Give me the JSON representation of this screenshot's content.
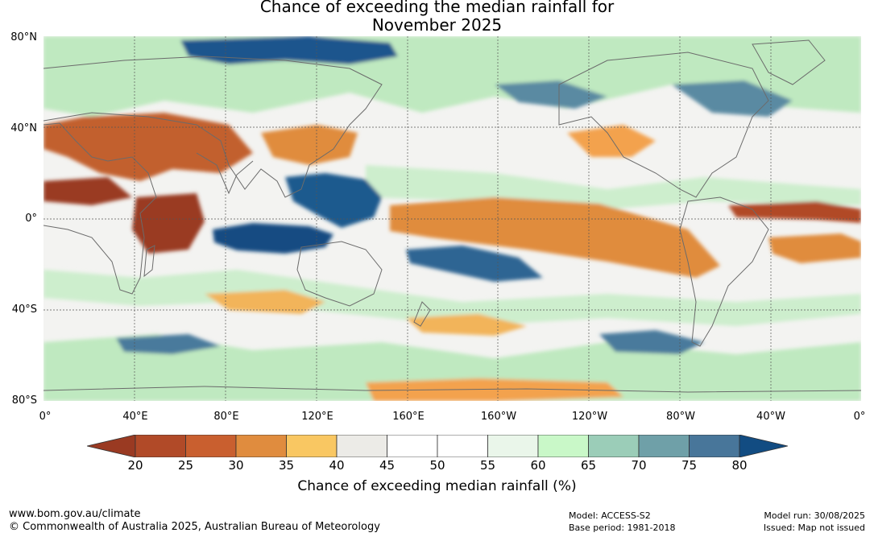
{
  "title": {
    "line1": "Chance of exceeding the median rainfall for",
    "line2": "November 2025"
  },
  "map": {
    "projection": "equirectangular, global",
    "lat_labels": [
      "80°N",
      "40°N",
      "0°",
      "40°S",
      "80°S"
    ],
    "lon_labels": [
      "0°",
      "40°E",
      "80°E",
      "120°E",
      "160°E",
      "160°W",
      "120°W",
      "80°W",
      "40°W",
      "0°"
    ],
    "gridlines": true
  },
  "colorbar": {
    "ticks": [
      "20",
      "25",
      "30",
      "35",
      "40",
      "45",
      "50",
      "55",
      "60",
      "65",
      "70",
      "75",
      "80"
    ],
    "colors": [
      "#9a3a22",
      "#b14a28",
      "#c95f2f",
      "#e08c3e",
      "#f9c762",
      "#ecebe7",
      "#ffffff",
      "#ffffff",
      "#eaf6ea",
      "#c9f8c8",
      "#9bcdb8",
      "#6fa0a8",
      "#48769a",
      "#124c82"
    ],
    "label": "Chance of exceeding median rainfall (%)"
  },
  "footer": {
    "website": "www.bom.gov.au/climate",
    "copyright": "© Commonwealth of Australia 2025, Australian Bureau of Meteorology",
    "model": "Model: ACCESS-S2",
    "base_period": "Base period: 1981-2018",
    "model_run": "Model run: 30/08/2025",
    "issued": "Issued: Map not issued"
  }
}
